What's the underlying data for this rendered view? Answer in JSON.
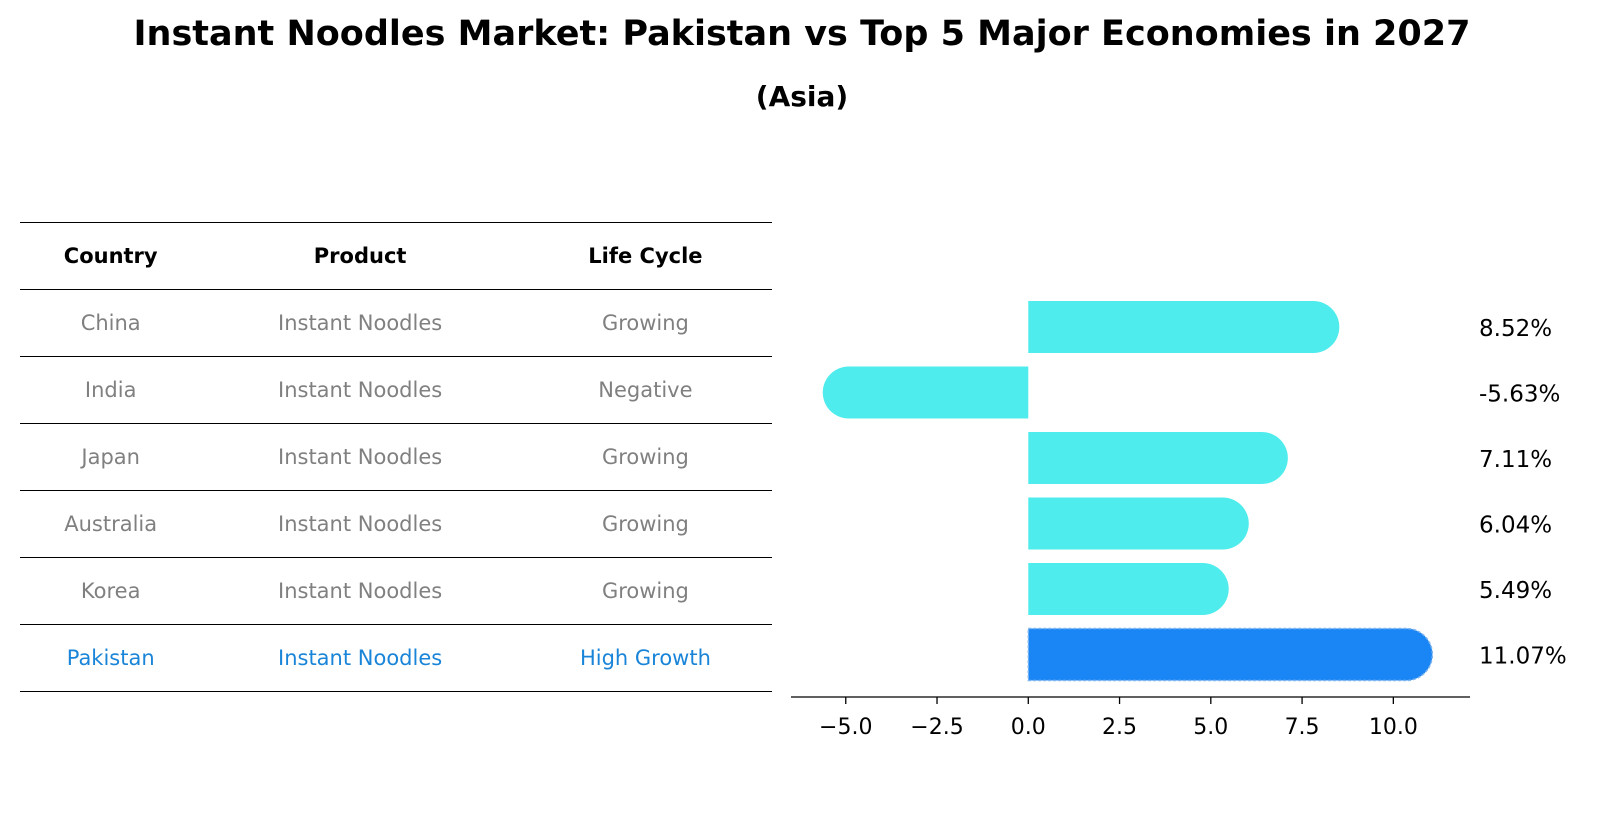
{
  "title": "Instant Noodles Market: Pakistan vs Top 5 Major Economies in 2027",
  "subtitle": "(Asia)",
  "table": {
    "headers": [
      "Country",
      "Product",
      "Life Cycle"
    ],
    "rows": [
      {
        "country": "China",
        "product": "Instant Noodles",
        "life_cycle": "Growing"
      },
      {
        "country": "India",
        "product": "Instant Noodles",
        "life_cycle": "Negative"
      },
      {
        "country": "Japan",
        "product": "Instant Noodles",
        "life_cycle": "Growing"
      },
      {
        "country": "Australia",
        "product": "Instant Noodles",
        "life_cycle": "Growing"
      },
      {
        "country": "Korea",
        "product": "Instant Noodles",
        "life_cycle": "Growing"
      },
      {
        "country": "Pakistan",
        "product": "Instant Noodles",
        "life_cycle": "High Growth"
      }
    ],
    "header_color": "#000000",
    "text_color": "#808080",
    "highlight_color": "#1a85d8"
  },
  "chart_data": {
    "type": "bar",
    "orientation": "horizontal",
    "categories": [
      "China",
      "India",
      "Japan",
      "Australia",
      "Korea",
      "Pakistan"
    ],
    "values": [
      8.52,
      -5.63,
      7.11,
      6.04,
      5.49,
      11.07
    ],
    "value_labels": [
      "8.52%",
      "-5.63%",
      "7.11%",
      "6.04%",
      "5.49%",
      "11.07%"
    ],
    "xlim": [
      -6.5,
      12.1
    ],
    "xticks": [
      -5.0,
      -2.5,
      0.0,
      2.5,
      5.0,
      7.5,
      10.0
    ],
    "xtick_labels": [
      "−5.0",
      "−2.5",
      "0.0",
      "2.5",
      "5.0",
      "7.5",
      "10.0"
    ],
    "bar_color": "#4eecec",
    "highlight_color": "#1a85f5",
    "highlight_category": "Pakistan",
    "grid": false
  }
}
